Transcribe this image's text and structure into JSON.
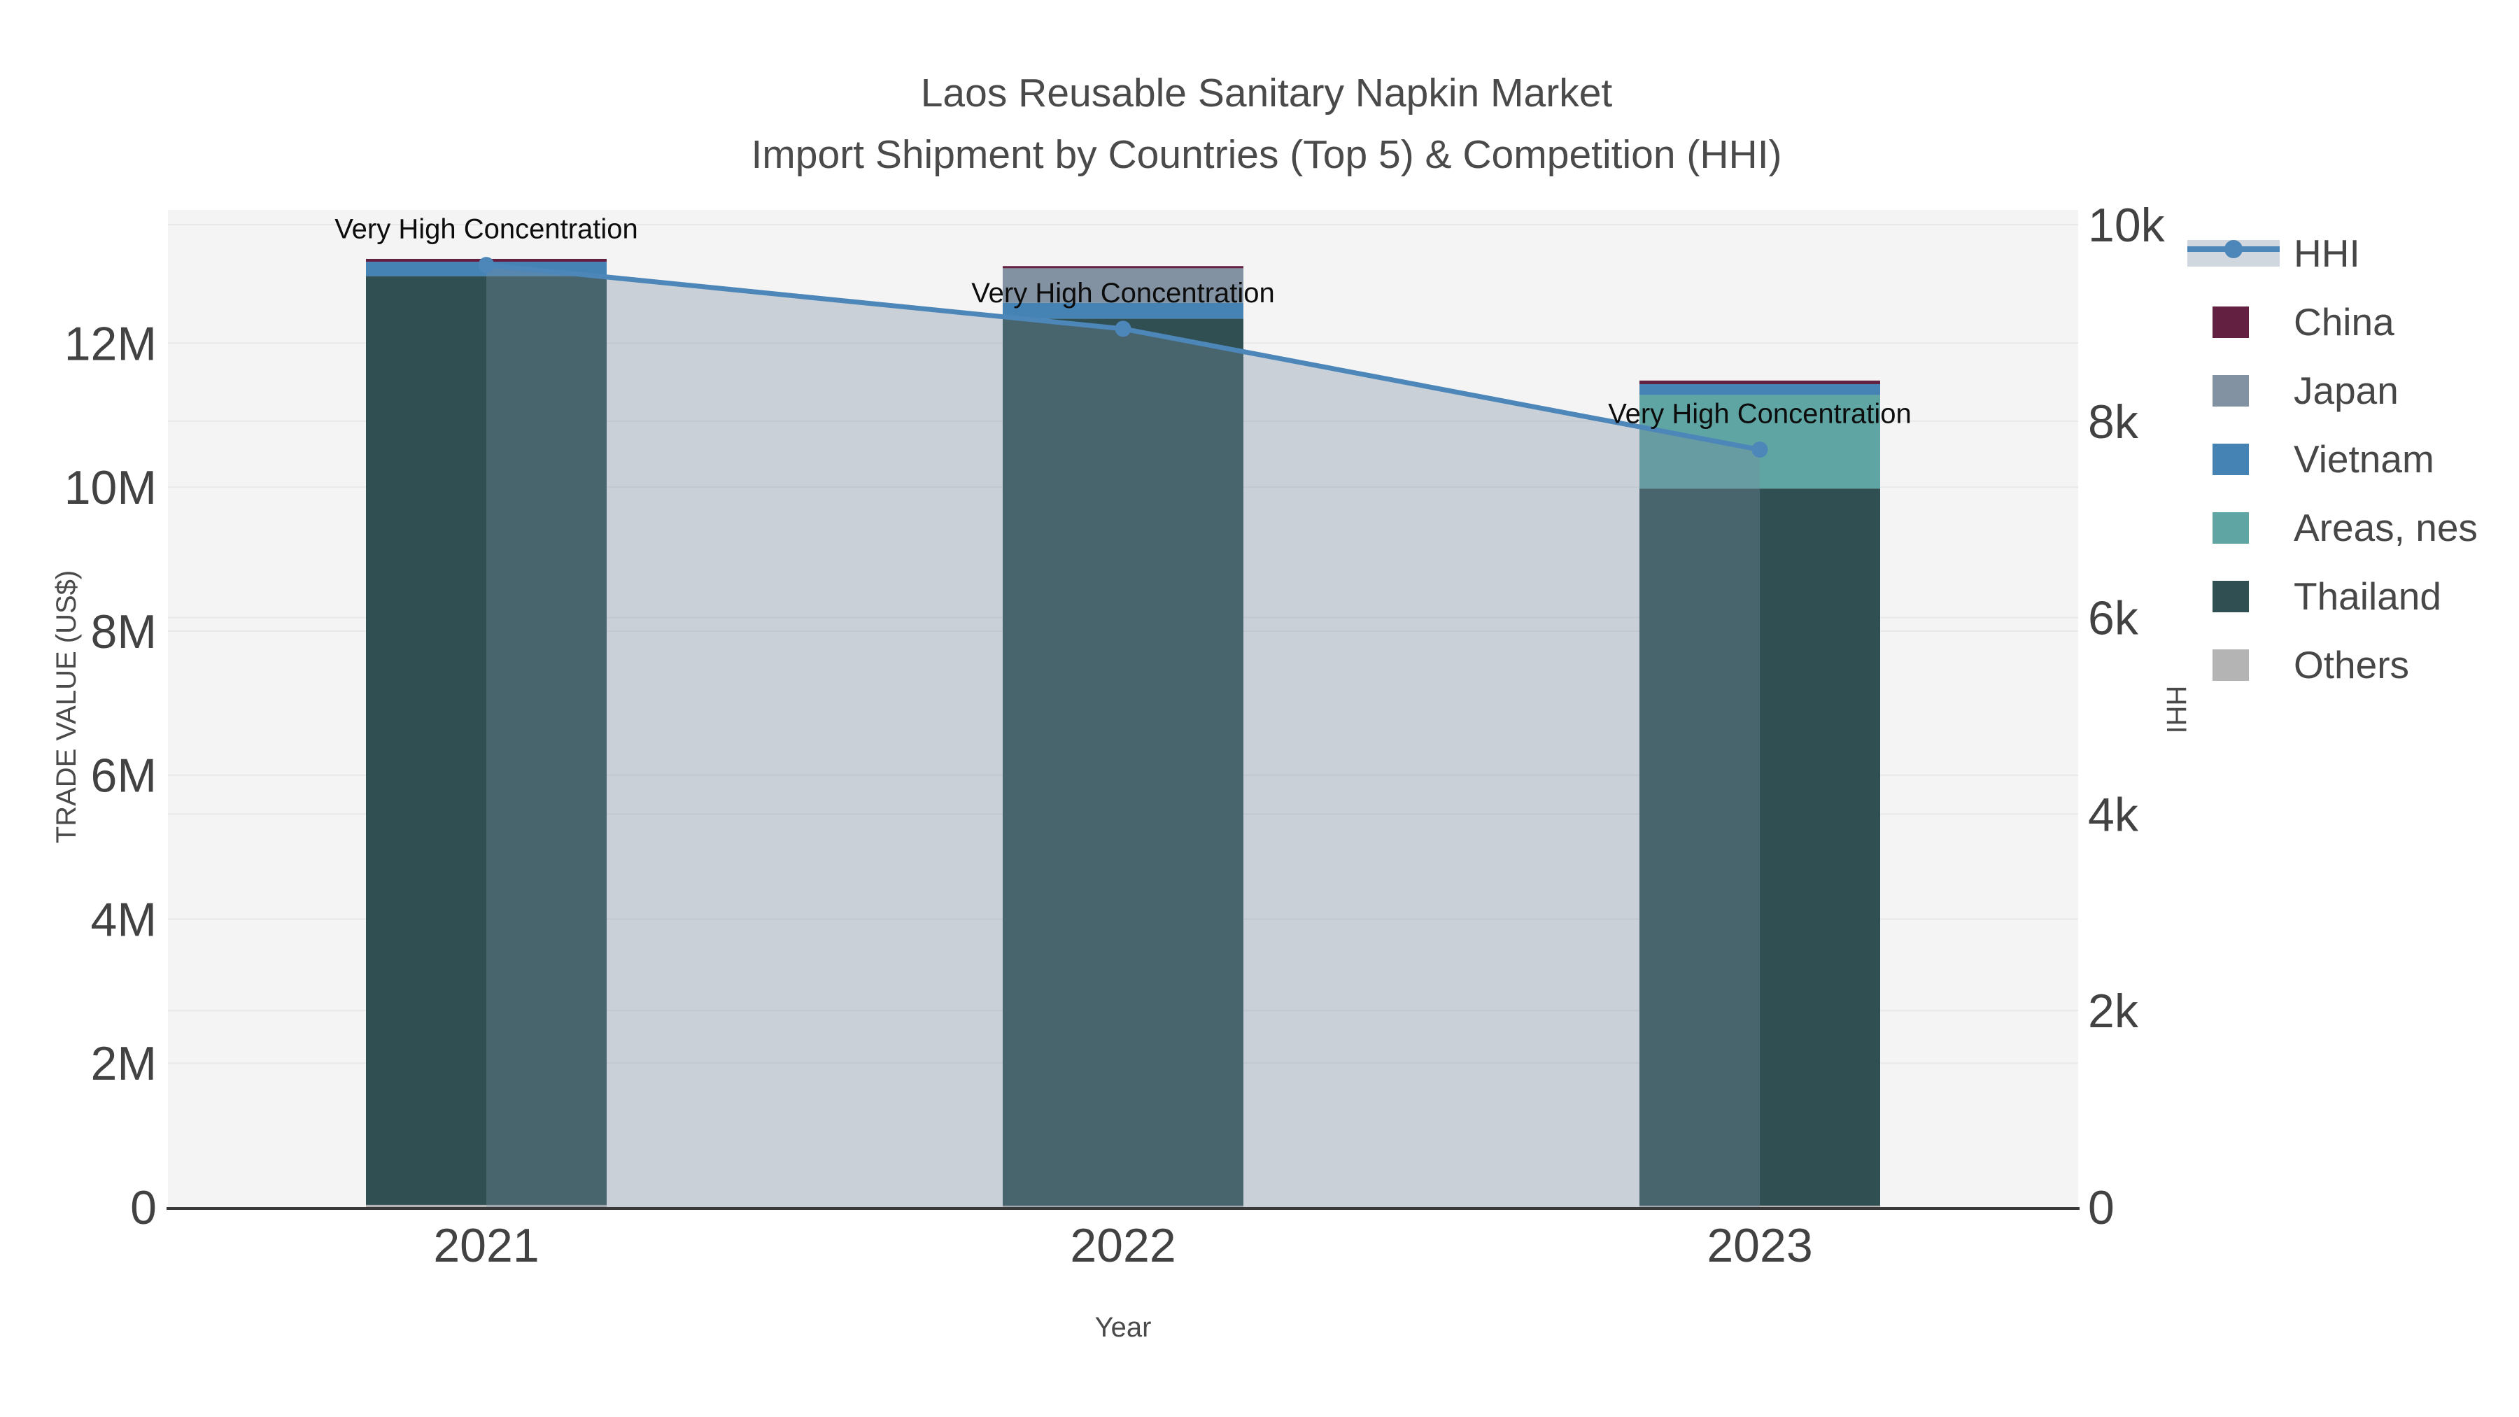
{
  "title": {
    "line1": "Laos Reusable Sanitary Napkin Market",
    "line2": "Import Shipment by Countries (Top 5) & Competition (HHI)"
  },
  "chart_data": {
    "type": "bar",
    "subtype": "stacked-bars-with-line-overlay",
    "categories": [
      "2021",
      "2022",
      "2023"
    ],
    "bar_value_unit": "million US$",
    "series": [
      {
        "name": "Others",
        "color": "#b4b4b4",
        "values": [
          0.03,
          0.02,
          0.02
        ]
      },
      {
        "name": "Thailand",
        "color": "#2f4f52",
        "values": [
          12.9,
          12.32,
          9.96
        ]
      },
      {
        "name": "Areas, nes",
        "color": "#5ea5a3",
        "values": [
          0,
          0,
          1.3
        ]
      },
      {
        "name": "Vietnam",
        "color": "#4583b5",
        "values": [
          0.2,
          0.22,
          0.15
        ]
      },
      {
        "name": "Japan",
        "color": "#8292a2",
        "values": [
          0,
          0.48,
          0
        ]
      },
      {
        "name": "China",
        "color": "#642040",
        "values": [
          0.04,
          0.03,
          0.05
        ]
      }
    ],
    "line_series": {
      "name": "HHI",
      "color": "#4d86b8",
      "area_fill": "rgba(120,140,160,0.35)",
      "axis": "right",
      "values": [
        9590,
        8940,
        7710
      ]
    },
    "point_annotations": [
      {
        "category": "2021",
        "text": "Very High Concentration"
      },
      {
        "category": "2022",
        "text": "Very High Concentration"
      },
      {
        "category": "2023",
        "text": "Very High Concentration"
      }
    ],
    "axes": {
      "left": {
        "title": "TRADE VALUE (US$)",
        "tick_labels": [
          "0",
          "2M",
          "4M",
          "6M",
          "8M",
          "10M",
          "12M"
        ],
        "tick_values": [
          0,
          2,
          4,
          6,
          8,
          10,
          12
        ],
        "range": [
          0,
          13.85
        ]
      },
      "right": {
        "title": "HHI",
        "tick_labels": [
          "0",
          "2k",
          "4k",
          "6k",
          "8k",
          "10k"
        ],
        "tick_values": [
          0,
          2000,
          4000,
          6000,
          8000,
          10000
        ],
        "range": [
          0,
          10150
        ]
      },
      "x": {
        "title": "Year"
      }
    },
    "legend": {
      "position": "right",
      "entries": [
        {
          "label": "HHI",
          "swatch": "line",
          "color": "#4d86b8"
        },
        {
          "label": "China",
          "swatch": "square",
          "color": "#642040"
        },
        {
          "label": "Japan",
          "swatch": "square",
          "color": "#8292a2"
        },
        {
          "label": "Vietnam",
          "swatch": "square",
          "color": "#4583b5"
        },
        {
          "label": "Areas, nes",
          "swatch": "square",
          "color": "#5ea5a3"
        },
        {
          "label": "Thailand",
          "swatch": "square",
          "color": "#2f4f52"
        },
        {
          "label": "Others",
          "swatch": "square",
          "color": "#b4b4b4"
        }
      ]
    },
    "plot_background": "#f4f4f4",
    "gridline_color": "#e8e8e8",
    "axis_line_color": "#3a3a3a",
    "grid": true
  }
}
